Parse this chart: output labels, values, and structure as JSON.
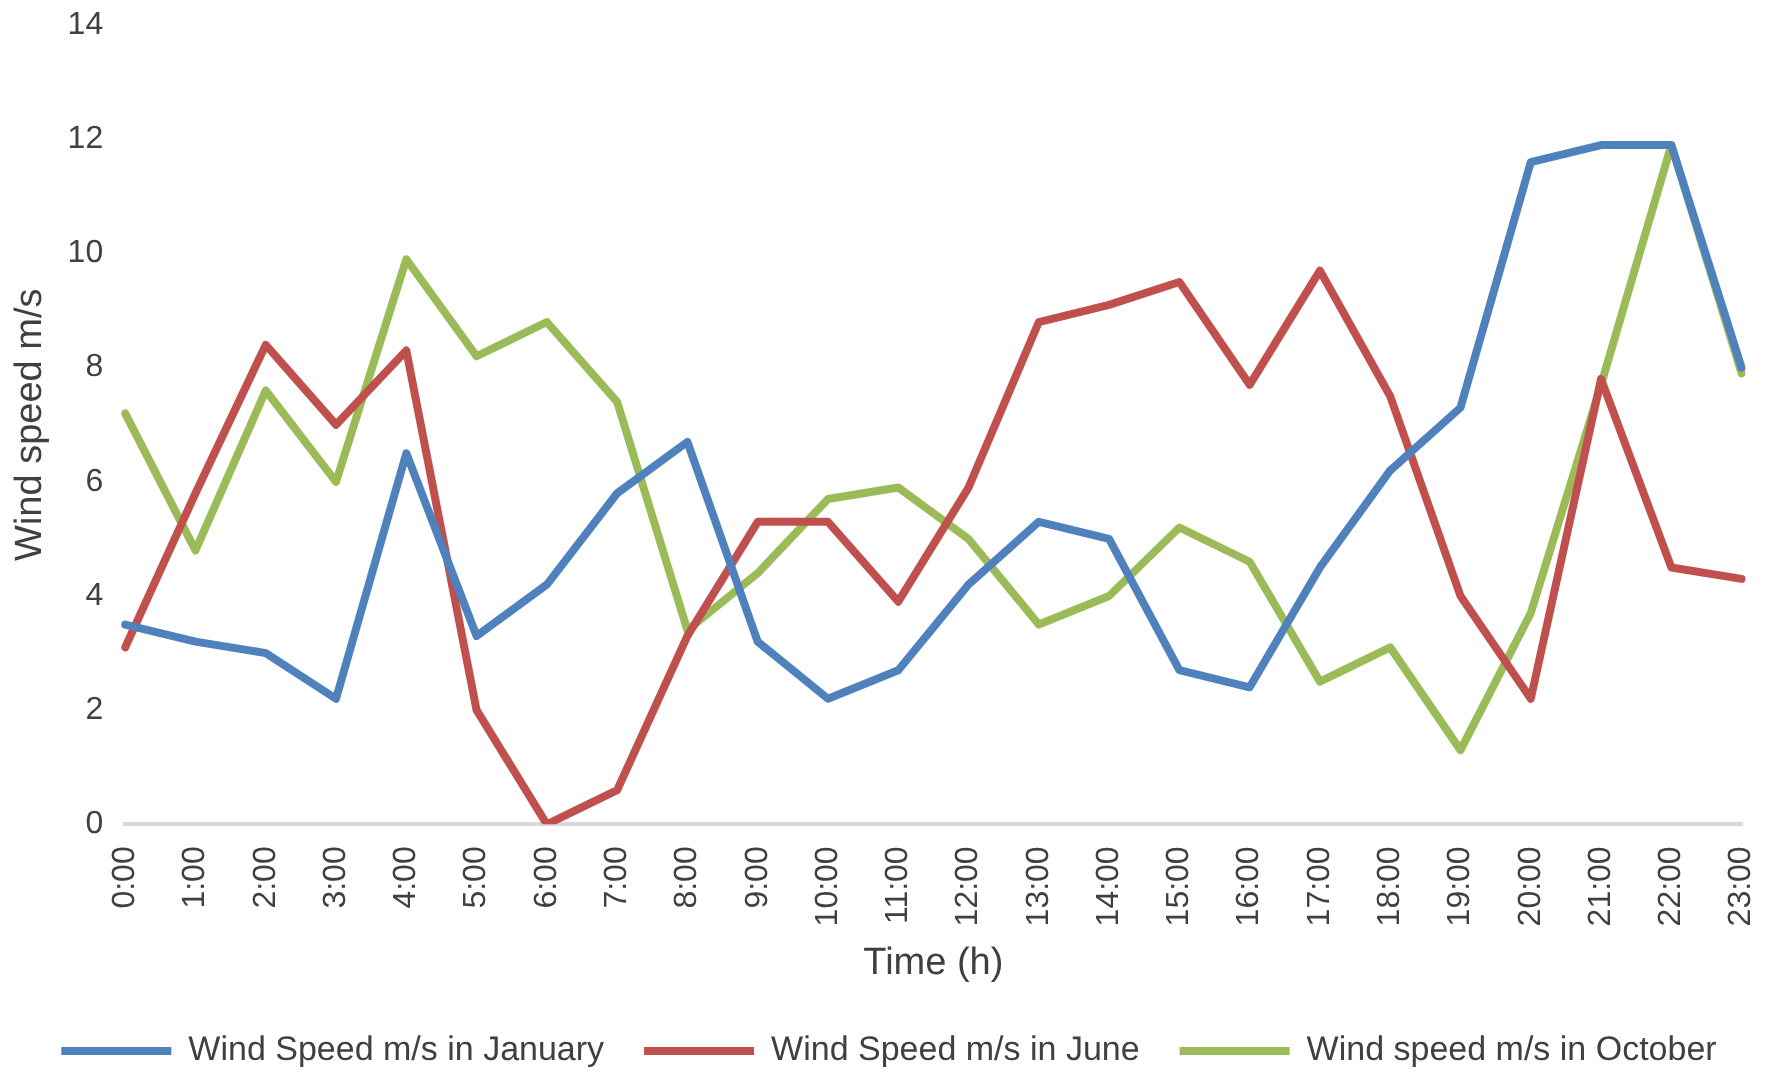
{
  "chart_data": {
    "type": "line",
    "xlabel": "Time (h)",
    "ylabel": "Wind speed m/s",
    "categories": [
      "0:00",
      "1:00",
      "2:00",
      "3:00",
      "4:00",
      "5:00",
      "6:00",
      "7:00",
      "8:00",
      "9:00",
      "10:00",
      "11:00",
      "12:00",
      "13:00",
      "14:00",
      "15:00",
      "16:00",
      "17:00",
      "18:00",
      "19:00",
      "20:00",
      "21:00",
      "22:00",
      "23:00"
    ],
    "series": [
      {
        "name": "Wind Speed m/s in January",
        "color": "#4f81bd",
        "values": [
          3.5,
          3.2,
          3.0,
          2.2,
          6.5,
          3.3,
          4.2,
          5.8,
          6.7,
          3.2,
          2.2,
          2.7,
          4.2,
          5.3,
          5.0,
          2.7,
          2.4,
          4.5,
          6.2,
          7.3,
          11.6,
          11.9,
          11.9,
          8.0
        ]
      },
      {
        "name": "Wind Speed m/s in June",
        "color": "#c0504d",
        "values": [
          3.1,
          5.8,
          8.4,
          7.0,
          8.3,
          2.0,
          0.0,
          0.6,
          3.3,
          5.3,
          5.3,
          3.9,
          5.9,
          8.8,
          9.1,
          9.5,
          7.7,
          9.7,
          7.5,
          4.0,
          2.2,
          7.8,
          4.5,
          4.3
        ]
      },
      {
        "name": "Wind speed m/s in October",
        "color": "#9bbb59",
        "values": [
          7.2,
          4.8,
          7.6,
          6.0,
          9.9,
          8.2,
          8.8,
          7.4,
          3.4,
          4.4,
          5.7,
          5.9,
          5.0,
          3.5,
          4.0,
          5.2,
          4.6,
          2.5,
          3.1,
          1.3,
          3.7,
          7.7,
          11.9,
          7.9
        ]
      }
    ],
    "ylim": [
      0,
      14
    ],
    "yticks": [
      0,
      2,
      4,
      6,
      8,
      10,
      12,
      14
    ],
    "grid": false,
    "legend": "bottom",
    "marker": "none",
    "line_style": "solid"
  }
}
